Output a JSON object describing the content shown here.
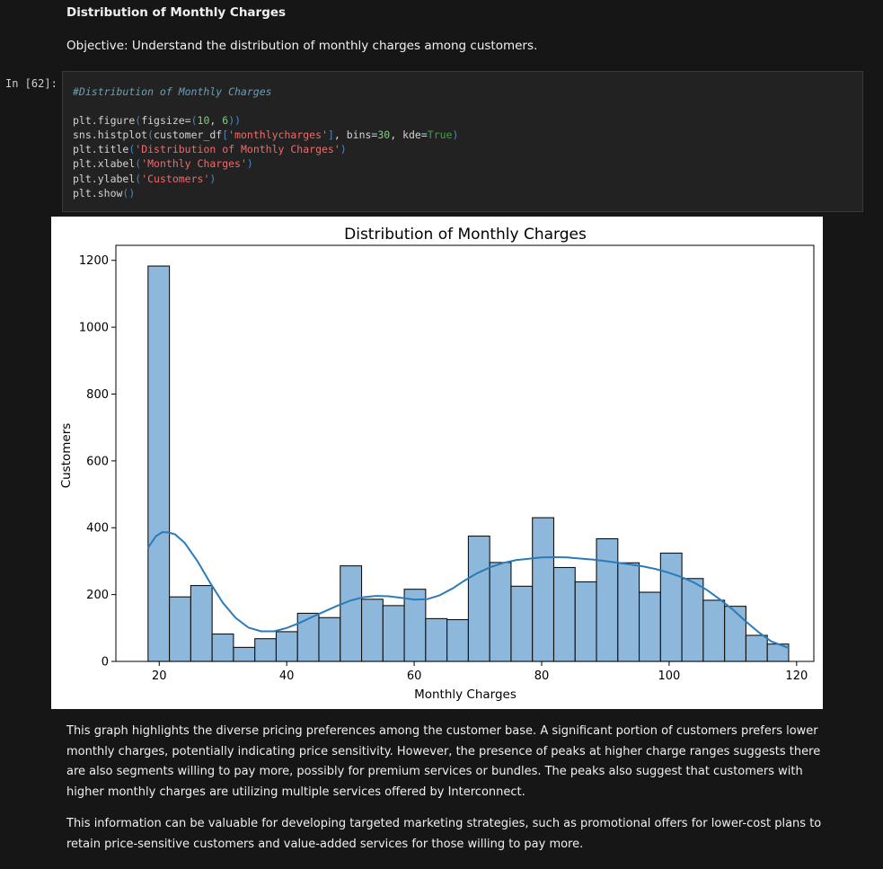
{
  "markdown": {
    "title": "Distribution of Monthly Charges",
    "objective": "Objective: Understand the distribution of monthly charges among customers."
  },
  "cell": {
    "prompt": "In [62]:",
    "code_lines": [
      "#Distribution of Monthly Charges",
      "",
      "plt.figure(figsize=(10, 6))",
      "sns.histplot(customer_df['monthlycharges'], bins=30, kde=True)",
      "plt.title('Distribution of Monthly Charges')",
      "plt.xlabel('Monthly Charges')",
      "plt.ylabel('Customers')",
      "plt.show()"
    ]
  },
  "colors": {
    "bar_fill": "#8db8db",
    "bar_edge": "#111111",
    "kde_line": "#2b7bb9"
  },
  "chart_data": {
    "type": "bar",
    "title": "Distribution of Monthly Charges",
    "xlabel": "Monthly Charges",
    "ylabel": "Customers",
    "xlim": [
      13.2,
      122.7
    ],
    "ylim": [
      0,
      1245
    ],
    "xticks": [
      20,
      40,
      60,
      80,
      100,
      120
    ],
    "yticks": [
      0,
      200,
      400,
      600,
      800,
      1000,
      1200
    ],
    "bins_start": 18.25,
    "bin_width": 3.35,
    "values": [
      1183,
      193,
      227,
      82,
      42,
      68,
      89,
      144,
      131,
      286,
      186,
      167,
      216,
      128,
      125,
      375,
      296,
      225,
      430,
      281,
      238,
      367,
      295,
      207,
      324,
      248,
      183,
      165,
      78,
      52
    ],
    "kde": {
      "x": [
        18.25,
        19.5,
        20.5,
        21.5,
        22.5,
        24,
        26,
        28,
        30,
        32,
        34,
        36,
        38,
        40,
        42,
        44,
        46,
        48,
        50,
        52,
        54,
        56,
        58,
        60,
        62,
        64,
        66,
        68,
        70,
        72,
        74,
        76,
        78,
        80,
        82,
        84,
        86,
        88,
        90,
        92,
        94,
        96,
        98,
        100,
        102,
        104,
        106,
        108,
        110,
        112,
        114,
        116,
        118.75
      ],
      "y": [
        340,
        375,
        387,
        386,
        380,
        355,
        300,
        235,
        175,
        130,
        101,
        90,
        90,
        100,
        115,
        133,
        150,
        167,
        182,
        192,
        196,
        195,
        190,
        185,
        186,
        198,
        218,
        243,
        265,
        282,
        295,
        303,
        307,
        311,
        312,
        311,
        308,
        305,
        300,
        295,
        290,
        284,
        276,
        265,
        252,
        235,
        213,
        185,
        155,
        120,
        88,
        60,
        40
      ]
    }
  },
  "paragraphs": [
    "This graph highlights the diverse pricing preferences among the customer base. A significant portion of customers prefers lower monthly charges, potentially indicating price sensitivity. However, the presence of peaks at higher charge ranges suggests there are also segments willing to pay more, possibly for premium services or bundles. The peaks also suggest that customers with higher monthly charges are utilizing multiple services offered by Interconnect.",
    "This information can be valuable for developing targeted marketing strategies, such as promotional offers for lower-cost plans to retain price-sensitive customers and value-added services for those willing to pay more."
  ]
}
